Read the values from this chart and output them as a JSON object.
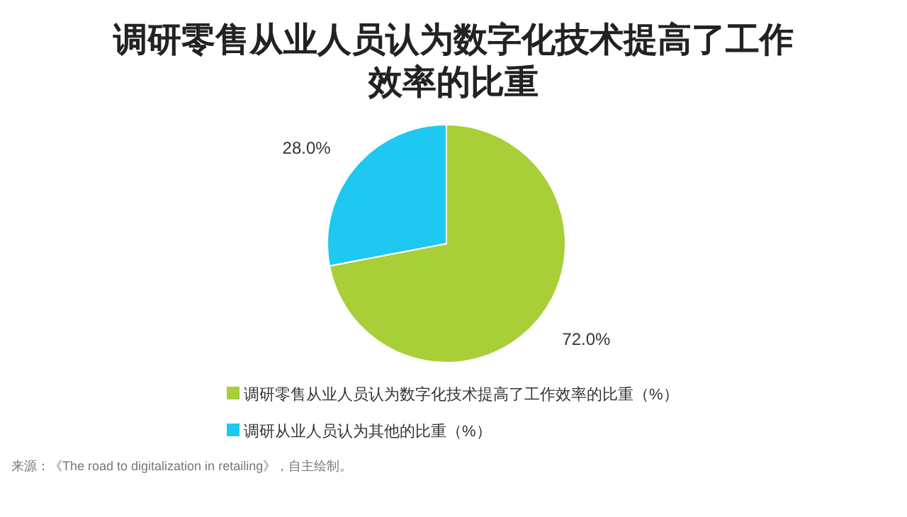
{
  "chart_data": {
    "type": "pie",
    "title": "调研零售从业人员认为数字化技术提高了工作效率的比重",
    "categories": [
      "调研零售从业人员认为数字化技术提高了工作效率的比重（%）",
      "调研从业人员认为其他的比重（%）"
    ],
    "values": [
      72.0,
      28.0
    ],
    "colors": [
      "#a8cf38",
      "#1ec8f0"
    ],
    "value_labels": [
      "72.0%",
      "28.0%"
    ],
    "legend": "bottom",
    "annotations": [
      "来源：《The road to digitalization in retailing》，自主绘制。"
    ]
  }
}
